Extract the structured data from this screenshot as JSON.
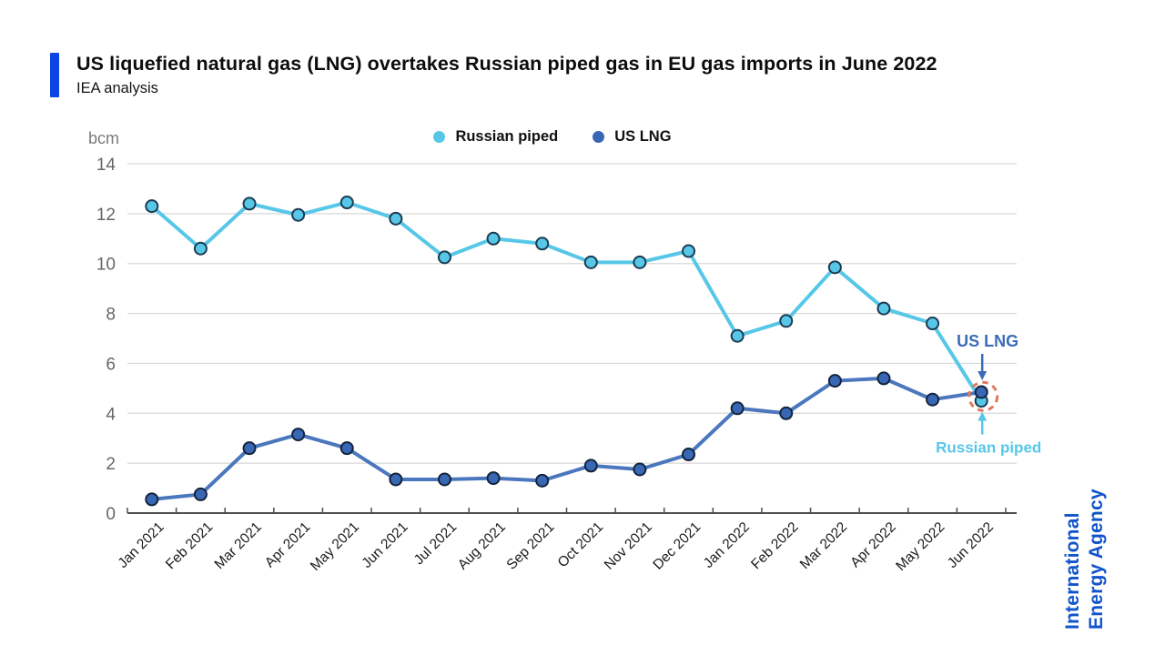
{
  "header": {
    "title": "US liquefied natural gas (LNG) overtakes Russian piped gas in EU gas imports in June 2022",
    "subtitle": "IEA analysis",
    "accent_color": "#0b45e6"
  },
  "legend": [
    {
      "label": "Russian piped",
      "color": "#57c7e8"
    },
    {
      "label": "US LNG",
      "color": "#3767b5"
    }
  ],
  "branding": {
    "line1": "International",
    "line2": "Energy Agency",
    "color": "#1254cb"
  },
  "chart_data": {
    "type": "line",
    "title": "US liquefied natural gas (LNG) overtakes Russian piped gas in EU gas imports in June 2022",
    "unit_label": "bcm",
    "x": [
      "Jan 2021",
      "Feb 2021",
      "Mar 2021",
      "Apr 2021",
      "May 2021",
      "Jun 2021",
      "Jul 2021",
      "Aug 2021",
      "Sep 2021",
      "Oct 2021",
      "Nov 2021",
      "Dec 2021",
      "Jan 2022",
      "Feb 2022",
      "Mar 2022",
      "Apr 2022",
      "May 2022",
      "Jun 2022"
    ],
    "series": [
      {
        "name": "Russian piped",
        "color": "#57c7e8",
        "marker_fill": "#57c7e8",
        "marker_stroke": "#1d3a52",
        "values": [
          12.3,
          10.6,
          12.4,
          11.95,
          12.45,
          11.8,
          10.25,
          11.0,
          10.8,
          10.05,
          10.05,
          10.5,
          7.1,
          7.7,
          9.85,
          8.2,
          7.6,
          4.5
        ]
      },
      {
        "name": "US LNG",
        "color": "#4a77bd",
        "marker_fill": "#3767b5",
        "marker_stroke": "#14233b",
        "values": [
          0.55,
          0.75,
          2.6,
          3.15,
          2.6,
          1.35,
          1.35,
          1.4,
          1.3,
          1.9,
          1.75,
          2.35,
          4.2,
          4.0,
          5.3,
          5.4,
          4.55,
          4.85
        ]
      }
    ],
    "ylim": [
      0,
      14
    ],
    "yticks": [
      0,
      2,
      4,
      6,
      8,
      10,
      12,
      14
    ],
    "grid": true,
    "legend_position": "top-center",
    "annotations": [
      {
        "id": "us-lng-label",
        "text": "US LNG",
        "color": "#3b6cb7",
        "series": "US LNG",
        "point": "Jun 2022",
        "direction": "above"
      },
      {
        "id": "russian-piped-label",
        "text": "Russian piped",
        "color": "#57c7e8",
        "series": "Russian piped",
        "point": "Jun 2022",
        "direction": "below"
      },
      {
        "id": "highlight-circle",
        "shape": "dashed-circle",
        "color": "#e0795c",
        "point": "Jun 2022"
      }
    ],
    "style": {
      "grid_color": "#d9d9d9",
      "axis_color": "#4d4d4d",
      "ytick_color": "#666666",
      "xtick_color": "#1a1a1a",
      "unit_color": "#7a7a7a"
    }
  }
}
